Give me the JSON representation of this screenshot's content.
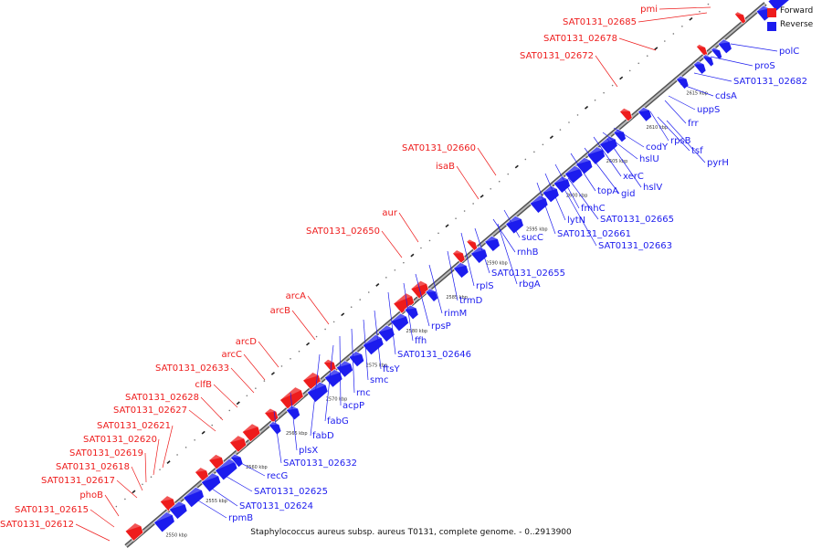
{
  "caption": "Staphylococcus aureus subsp. aureus T0131, complete genome. - 0..2913900",
  "colors": {
    "forward": "#ee1c1c",
    "reverse": "#1c1cee",
    "backbone": "#888888",
    "dots": "#777777"
  },
  "legend": {
    "forward": "Forward",
    "reverse": "Reverse"
  },
  "ticks": [
    "2550 kbp",
    "2555 kbp",
    "2560 kbp",
    "2565 kbp",
    "2570 kbp",
    "2575 kbp",
    "2580 kbp",
    "2585 kbp",
    "2590 kbp",
    "2595 kbp",
    "2600 kbp",
    "2605 kbp",
    "2610 kbp",
    "2615 kbp"
  ],
  "forward_labels": [
    "pmi",
    "SAT0131_02685",
    "SAT0131_02678",
    "SAT0131_02672",
    "SAT0131_02660",
    "isaB",
    "aur",
    "SAT0131_02650",
    "arcA",
    "arcB",
    "arcD",
    "arcC",
    "SAT0131_02633",
    "clfB",
    "SAT0131_02628",
    "SAT0131_02627",
    "SAT0131_02621",
    "SAT0131_02620",
    "SAT0131_02619",
    "SAT0131_02618",
    "SAT0131_02617",
    "phoB",
    "SAT0131_02615",
    "SAT0131_02612"
  ],
  "reverse_labels": [
    "polC",
    "proS",
    "SAT0131_02682",
    "cdsA",
    "uppS",
    "frr",
    "rpsB",
    "tsf",
    "pyrH",
    "codY",
    "hslU",
    "xerC",
    "hslV",
    "gid",
    "topA",
    "fmhC",
    "lytN",
    "SAT0131_02665",
    "SAT0131_02661",
    "SAT0131_02663",
    "sucC",
    "rnhB",
    "SAT0131_02655",
    "rbgA",
    "rplS",
    "trmD",
    "rimM",
    "rpsP",
    "ffh",
    "SAT0131_02646",
    "ftsY",
    "smc",
    "rnc",
    "acpP",
    "fabG",
    "fabD",
    "plsX",
    "SAT0131_02632",
    "recG",
    "SAT0131_02625",
    "SAT0131_02624",
    "rpmB"
  ]
}
